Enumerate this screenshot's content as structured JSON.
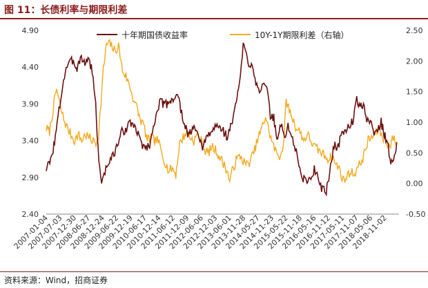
{
  "title": "图 11：长债利率与期限利差",
  "source": "资料来源：Wind，招商证券",
  "colors": {
    "long_yield": "#6b0f0f",
    "term_spread": "#f5a81c",
    "title": "#8b1a1a"
  },
  "chart_data": {
    "type": "line",
    "legend_position": "top",
    "grid": false,
    "x_ticks": [
      "2007-01-04",
      "2007-07-03",
      "2007-12-30",
      "2008-06-27",
      "2008-12-24",
      "2009-06-22",
      "2009-12-19",
      "2010-06-17",
      "2010-12-14",
      "2011-06-12",
      "2011-12-09",
      "2012-06-06",
      "2012-12-03",
      "2013-06-01",
      "2013-11-28",
      "2014-05-27",
      "2014-11-23",
      "2015-05-22",
      "2015-11-18",
      "2016-05-16",
      "2016-11-12",
      "2017-05-11",
      "2017-11-07",
      "2018-05-06",
      "2018-11-02"
    ],
    "y_left": {
      "ticks": [
        "2.40",
        "2.90",
        "3.40",
        "3.90",
        "4.40",
        "4.90"
      ],
      "range": [
        2.4,
        4.9
      ]
    },
    "y_right": {
      "ticks": [
        "-0.50",
        "0.00",
        "0.50",
        "1.00",
        "1.50",
        "2.00",
        "2.50"
      ],
      "range": [
        -0.5,
        2.5
      ]
    },
    "series": [
      {
        "name": "十年期国债收益率",
        "axis": "left",
        "points": [
          [
            "2007-01-04",
            3.02
          ],
          [
            "2007-03-01",
            3.12
          ],
          [
            "2007-05-01",
            3.45
          ],
          [
            "2007-06-15",
            3.8
          ],
          [
            "2007-08-01",
            4.15
          ],
          [
            "2007-09-15",
            4.4
          ],
          [
            "2007-11-01",
            4.45
          ],
          [
            "2007-12-15",
            4.5
          ],
          [
            "2008-02-01",
            4.38
          ],
          [
            "2008-03-15",
            4.55
          ],
          [
            "2008-05-01",
            4.45
          ],
          [
            "2008-06-20",
            4.52
          ],
          [
            "2008-08-01",
            4.4
          ],
          [
            "2008-09-15",
            4.05
          ],
          [
            "2008-10-15",
            3.5
          ],
          [
            "2008-11-15",
            3.0
          ],
          [
            "2008-12-10",
            2.85
          ],
          [
            "2009-01-10",
            2.95
          ],
          [
            "2009-02-15",
            3.05
          ],
          [
            "2009-04-01",
            3.15
          ],
          [
            "2009-05-15",
            3.2
          ],
          [
            "2009-07-01",
            3.35
          ],
          [
            "2009-08-15",
            3.5
          ],
          [
            "2009-10-01",
            3.55
          ],
          [
            "2009-11-15",
            3.6
          ],
          [
            "2010-01-01",
            3.65
          ],
          [
            "2010-02-15",
            3.55
          ],
          [
            "2010-04-01",
            3.45
          ],
          [
            "2010-05-15",
            3.35
          ],
          [
            "2010-07-01",
            3.3
          ],
          [
            "2010-08-15",
            3.35
          ],
          [
            "2010-10-01",
            3.55
          ],
          [
            "2010-11-15",
            3.85
          ],
          [
            "2011-01-01",
            3.92
          ],
          [
            "2011-03-01",
            3.88
          ],
          [
            "2011-05-01",
            3.95
          ],
          [
            "2011-07-01",
            3.98
          ],
          [
            "2011-08-15",
            4.02
          ],
          [
            "2011-09-15",
            3.8
          ],
          [
            "2011-11-01",
            3.65
          ],
          [
            "2011-12-15",
            3.45
          ],
          [
            "2012-02-01",
            3.55
          ],
          [
            "2012-04-01",
            3.55
          ],
          [
            "2012-05-15",
            3.35
          ],
          [
            "2012-07-01",
            3.32
          ],
          [
            "2012-08-15",
            3.45
          ],
          [
            "2012-10-01",
            3.5
          ],
          [
            "2012-11-15",
            3.58
          ],
          [
            "2013-01-01",
            3.6
          ],
          [
            "2013-03-01",
            3.55
          ],
          [
            "2013-05-01",
            3.45
          ],
          [
            "2013-06-01",
            3.55
          ],
          [
            "2013-07-15",
            3.7
          ],
          [
            "2013-09-01",
            4.0
          ],
          [
            "2013-10-15",
            4.25
          ],
          [
            "2013-11-20",
            4.7
          ],
          [
            "2013-12-20",
            4.6
          ],
          [
            "2014-02-01",
            4.45
          ],
          [
            "2014-03-15",
            4.45
          ],
          [
            "2014-05-01",
            4.2
          ],
          [
            "2014-06-15",
            4.1
          ],
          [
            "2014-08-01",
            4.15
          ],
          [
            "2014-09-15",
            4.1
          ],
          [
            "2014-11-01",
            3.75
          ],
          [
            "2014-12-15",
            3.7
          ],
          [
            "2015-02-01",
            3.4
          ],
          [
            "2015-03-15",
            3.62
          ],
          [
            "2015-05-01",
            3.45
          ],
          [
            "2015-06-15",
            3.6
          ],
          [
            "2015-08-01",
            3.45
          ],
          [
            "2015-09-15",
            3.3
          ],
          [
            "2015-11-01",
            3.05
          ],
          [
            "2015-12-15",
            2.9
          ],
          [
            "2016-02-01",
            2.85
          ],
          [
            "2016-04-01",
            2.9
          ],
          [
            "2016-05-15",
            3.0
          ],
          [
            "2016-07-01",
            2.95
          ],
          [
            "2016-08-15",
            2.75
          ],
          [
            "2016-10-15",
            2.7
          ],
          [
            "2016-11-15",
            2.9
          ],
          [
            "2016-12-20",
            3.15
          ],
          [
            "2017-02-01",
            3.35
          ],
          [
            "2017-03-15",
            3.3
          ],
          [
            "2017-05-01",
            3.55
          ],
          [
            "2017-06-15",
            3.5
          ],
          [
            "2017-08-01",
            3.62
          ],
          [
            "2017-09-15",
            3.65
          ],
          [
            "2017-11-07",
            3.95
          ],
          [
            "2017-12-20",
            3.9
          ],
          [
            "2018-02-01",
            3.85
          ],
          [
            "2018-03-15",
            3.7
          ],
          [
            "2018-05-01",
            3.65
          ],
          [
            "2018-06-15",
            3.5
          ],
          [
            "2018-08-01",
            3.55
          ],
          [
            "2018-09-15",
            3.65
          ],
          [
            "2018-11-02",
            3.45
          ],
          [
            "2018-12-15",
            3.3
          ],
          [
            "2019-01-15",
            3.1
          ],
          [
            "2019-02-20",
            3.15
          ],
          [
            "2019-04-01",
            3.38
          ]
        ]
      },
      {
        "name": "10Y-1Y期限利差（右轴）",
        "axis": "right",
        "points": [
          [
            "2007-01-04",
            0.9
          ],
          [
            "2007-02-15",
            0.85
          ],
          [
            "2007-04-01",
            1.2
          ],
          [
            "2007-05-15",
            1.55
          ],
          [
            "2007-07-01",
            1.25
          ],
          [
            "2007-08-15",
            1.05
          ],
          [
            "2007-10-01",
            0.9
          ],
          [
            "2007-11-15",
            0.8
          ],
          [
            "2008-01-01",
            0.7
          ],
          [
            "2008-02-15",
            0.8
          ],
          [
            "2008-04-01",
            0.7
          ],
          [
            "2008-05-15",
            0.8
          ],
          [
            "2008-07-01",
            0.75
          ],
          [
            "2008-08-15",
            0.7
          ],
          [
            "2008-10-01",
            0.65
          ],
          [
            "2008-11-01",
            0.8
          ],
          [
            "2008-12-01",
            1.3
          ],
          [
            "2009-01-01",
            1.85
          ],
          [
            "2009-02-01",
            2.2
          ],
          [
            "2009-03-01",
            2.3
          ],
          [
            "2009-04-15",
            2.25
          ],
          [
            "2009-06-01",
            2.15
          ],
          [
            "2009-07-15",
            2.25
          ],
          [
            "2009-09-01",
            1.85
          ],
          [
            "2009-10-15",
            1.75
          ],
          [
            "2009-12-01",
            1.6
          ],
          [
            "2010-01-15",
            1.4
          ],
          [
            "2010-03-01",
            1.25
          ],
          [
            "2010-04-15",
            1.05
          ],
          [
            "2010-06-01",
            0.95
          ],
          [
            "2010-07-15",
            0.7
          ],
          [
            "2010-09-01",
            0.75
          ],
          [
            "2010-10-15",
            0.7
          ],
          [
            "2010-12-01",
            0.7
          ],
          [
            "2011-01-15",
            0.5
          ],
          [
            "2011-03-01",
            0.35
          ],
          [
            "2011-04-15",
            0.2
          ],
          [
            "2011-06-01",
            0.25
          ],
          [
            "2011-07-15",
            0.15
          ],
          [
            "2011-09-01",
            0.65
          ],
          [
            "2011-10-15",
            0.75
          ],
          [
            "2011-12-01",
            0.85
          ],
          [
            "2012-01-15",
            0.75
          ],
          [
            "2012-03-01",
            0.7
          ],
          [
            "2012-04-15",
            0.8
          ],
          [
            "2012-06-01",
            0.7
          ],
          [
            "2012-07-15",
            0.55
          ],
          [
            "2012-09-01",
            0.5
          ],
          [
            "2012-10-15",
            0.6
          ],
          [
            "2012-12-01",
            0.55
          ],
          [
            "2013-01-15",
            0.45
          ],
          [
            "2013-03-01",
            0.35
          ],
          [
            "2013-04-15",
            0.25
          ],
          [
            "2013-06-01",
            0.05
          ],
          [
            "2013-07-15",
            0.25
          ],
          [
            "2013-09-01",
            0.4
          ],
          [
            "2013-10-15",
            0.45
          ],
          [
            "2013-12-01",
            0.35
          ],
          [
            "2014-01-15",
            0.3
          ],
          [
            "2014-03-01",
            0.4
          ],
          [
            "2014-04-15",
            0.55
          ],
          [
            "2014-06-01",
            0.75
          ],
          [
            "2014-07-15",
            0.9
          ],
          [
            "2014-09-01",
            1.1
          ],
          [
            "2014-10-15",
            0.85
          ],
          [
            "2014-12-01",
            0.65
          ],
          [
            "2015-01-15",
            0.5
          ],
          [
            "2015-03-01",
            0.45
          ],
          [
            "2015-04-15",
            0.6
          ],
          [
            "2015-05-22",
            1.35
          ],
          [
            "2015-07-01",
            1.2
          ],
          [
            "2015-08-15",
            1.05
          ],
          [
            "2015-10-01",
            0.9
          ],
          [
            "2015-11-15",
            0.85
          ],
          [
            "2016-01-01",
            0.7
          ],
          [
            "2016-02-15",
            0.8
          ],
          [
            "2016-04-01",
            0.7
          ],
          [
            "2016-05-15",
            0.6
          ],
          [
            "2016-07-01",
            0.55
          ],
          [
            "2016-08-15",
            0.5
          ],
          [
            "2016-10-01",
            0.45
          ],
          [
            "2016-11-15",
            0.4
          ],
          [
            "2017-01-01",
            0.45
          ],
          [
            "2017-02-15",
            0.3
          ],
          [
            "2017-04-01",
            0.25
          ],
          [
            "2017-05-15",
            0.05
          ],
          [
            "2017-07-01",
            0.1
          ],
          [
            "2017-08-15",
            0.2
          ],
          [
            "2017-10-01",
            0.15
          ],
          [
            "2017-11-15",
            0.25
          ],
          [
            "2018-01-01",
            0.35
          ],
          [
            "2018-02-15",
            0.5
          ],
          [
            "2018-04-01",
            0.7
          ],
          [
            "2018-05-15",
            0.75
          ],
          [
            "2018-07-01",
            0.8
          ],
          [
            "2018-08-15",
            0.9
          ],
          [
            "2018-10-01",
            0.75
          ],
          [
            "2018-11-15",
            0.7
          ],
          [
            "2019-01-01",
            0.6
          ],
          [
            "2019-02-15",
            0.75
          ],
          [
            "2019-04-01",
            0.65
          ]
        ]
      }
    ]
  }
}
